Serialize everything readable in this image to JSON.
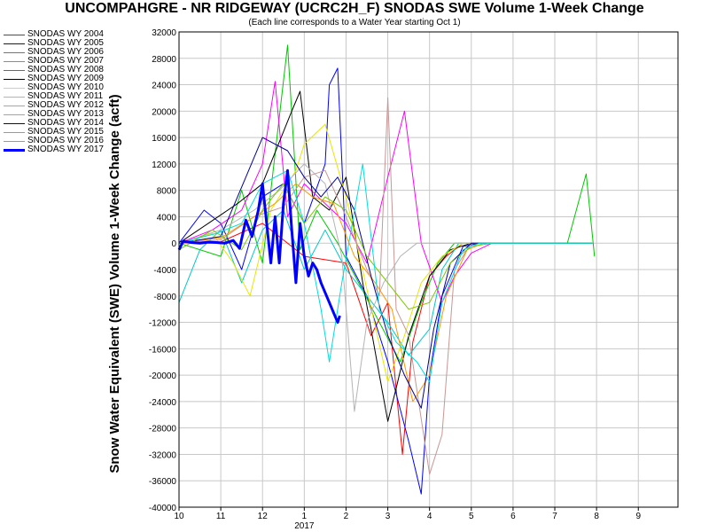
{
  "chart_data": {
    "type": "line",
    "title": "UNCOMPAHGRE - NR RIDGEWAY (UCRC2H_F) SNODAS SWE Volume 1-Week Change",
    "subtitle": "(Each line corresponds to a Water Year starting Oct 1)",
    "ylabel": "Snow Water Equivalent (SWE) Volume 1-Week Change (acft)",
    "xlabel": "",
    "ylim": [
      -40000,
      32000
    ],
    "yticks": [
      "32000",
      "28000",
      "24000",
      "20000",
      "16000",
      "12000",
      "8000",
      "4000",
      "0",
      "-4000",
      "-8000",
      "-12000",
      "-16000",
      "-20000",
      "-24000",
      "-28000",
      "-32000",
      "-36000",
      "-40000"
    ],
    "xticks": [
      "10",
      "11",
      "12",
      "1",
      "2",
      "3",
      "4",
      "5",
      "6",
      "7",
      "8",
      "9"
    ],
    "x_year_label": "2017",
    "grid": true,
    "legend_position": "left",
    "note": "x values are months since Oct 1 of the water year (0 = Oct 1)",
    "series": [
      {
        "name": "SNODAS WY 2004",
        "color": "#ff0000",
        "width": 1,
        "points": [
          [
            0,
            0
          ],
          [
            1,
            200
          ],
          [
            2,
            3000
          ],
          [
            3,
            -2000
          ],
          [
            4,
            -3000
          ],
          [
            4.6,
            -14000
          ],
          [
            5,
            -9000
          ],
          [
            5.35,
            -32000
          ],
          [
            5.6,
            -15000
          ],
          [
            6,
            -5000
          ],
          [
            6.4,
            -2000
          ],
          [
            6.8,
            0
          ],
          [
            9.9,
            0
          ]
        ]
      },
      {
        "name": "SNODAS WY 2005",
        "color": "#0000ff",
        "width": 1,
        "points": [
          [
            0,
            0
          ],
          [
            0.6,
            5000
          ],
          [
            1,
            3000
          ],
          [
            1.5,
            -4000
          ],
          [
            2,
            7000
          ],
          [
            2.5,
            9000
          ],
          [
            3,
            3000
          ],
          [
            3.5,
            12000
          ],
          [
            3.6,
            24000
          ],
          [
            3.8,
            26500
          ],
          [
            4,
            -2000
          ],
          [
            4.5,
            -8000
          ],
          [
            5,
            -18000
          ],
          [
            5.5,
            -30000
          ],
          [
            5.8,
            -38000
          ],
          [
            6,
            -20000
          ],
          [
            6.3,
            -8000
          ],
          [
            6.8,
            -500
          ],
          [
            7.2,
            0
          ],
          [
            9.9,
            0
          ]
        ]
      },
      {
        "name": "SNODAS WY 2006",
        "color": "#00c800",
        "width": 1,
        "points": [
          [
            0,
            0
          ],
          [
            1,
            -2000
          ],
          [
            1.5,
            8000
          ],
          [
            2,
            -3000
          ],
          [
            2.6,
            30000
          ],
          [
            2.9,
            -1000
          ],
          [
            3.3,
            5000
          ],
          [
            3.8,
            0
          ],
          [
            4.3,
            -6000
          ],
          [
            4.8,
            -12000
          ],
          [
            5.3,
            -18000
          ],
          [
            5.8,
            -9000
          ],
          [
            6.2,
            -3000
          ],
          [
            6.6,
            0
          ],
          [
            9.3,
            0
          ],
          [
            9.75,
            10500
          ],
          [
            9.95,
            -2000
          ]
        ]
      },
      {
        "name": "SNODAS WY 2007",
        "color": "#00c8c8",
        "width": 1,
        "points": [
          [
            0,
            -9000
          ],
          [
            0.5,
            -1000
          ],
          [
            1,
            2000
          ],
          [
            1.5,
            -6000
          ],
          [
            2,
            2000
          ],
          [
            2.5,
            5000
          ],
          [
            3,
            -4000
          ],
          [
            3.5,
            2000
          ],
          [
            4,
            -4000
          ],
          [
            4.5,
            -8000
          ],
          [
            5,
            -12000
          ],
          [
            5.5,
            -17000
          ],
          [
            6,
            -13000
          ],
          [
            6.3,
            -4000
          ],
          [
            6.7,
            0
          ],
          [
            9.9,
            0
          ]
        ]
      },
      {
        "name": "SNODAS WY 2008",
        "color": "#ff00ff",
        "width": 1,
        "points": [
          [
            0,
            0
          ],
          [
            0.8,
            2000
          ],
          [
            1.5,
            5000
          ],
          [
            2,
            12000
          ],
          [
            2.3,
            24500
          ],
          [
            2.6,
            4000
          ],
          [
            3,
            9000
          ],
          [
            3.5,
            6000
          ],
          [
            4,
            3000
          ],
          [
            4.5,
            -3000
          ],
          [
            5,
            10000
          ],
          [
            5.4,
            20000
          ],
          [
            5.8,
            0
          ],
          [
            6.3,
            -9000
          ],
          [
            6.6,
            -5000
          ],
          [
            7,
            -1500
          ],
          [
            7.5,
            0
          ],
          [
            9.9,
            0
          ]
        ]
      },
      {
        "name": "SNODAS WY 2009",
        "color": "#000000",
        "width": 1,
        "points": [
          [
            0,
            0
          ],
          [
            0.7,
            3000
          ],
          [
            1.4,
            6000
          ],
          [
            2,
            9000
          ],
          [
            2.7,
            20000
          ],
          [
            2.9,
            23000
          ],
          [
            3.2,
            7000
          ],
          [
            3.6,
            5000
          ],
          [
            4,
            10000
          ],
          [
            4.4,
            -6000
          ],
          [
            4.8,
            -20000
          ],
          [
            5,
            -27000
          ],
          [
            5.2,
            -22000
          ],
          [
            5.5,
            -14000
          ],
          [
            6,
            -5000
          ],
          [
            6.5,
            -1000
          ],
          [
            7,
            0
          ],
          [
            9.9,
            0
          ]
        ]
      },
      {
        "name": "SNODAS WY 2010",
        "color": "#e6e600",
        "width": 1,
        "points": [
          [
            0,
            0
          ],
          [
            0.8,
            1500
          ],
          [
            1.3,
            -3000
          ],
          [
            1.7,
            -8000
          ],
          [
            2.2,
            5000
          ],
          [
            2.8,
            11000
          ],
          [
            3,
            15000
          ],
          [
            3.5,
            18000
          ],
          [
            4,
            7000
          ],
          [
            4.5,
            -7000
          ],
          [
            5,
            -21000
          ],
          [
            5.4,
            -14000
          ],
          [
            5.8,
            -6000
          ],
          [
            6.3,
            -2000
          ],
          [
            6.8,
            0
          ],
          [
            9.9,
            0
          ]
        ]
      },
      {
        "name": "SNODAS WY 2011",
        "color": "#b4b4b4",
        "width": 1,
        "points": [
          [
            0,
            0
          ],
          [
            1,
            2000
          ],
          [
            1.8,
            5000
          ],
          [
            2.4,
            8000
          ],
          [
            3,
            12000
          ],
          [
            3.5,
            9000
          ],
          [
            3.9,
            -2000
          ],
          [
            4.2,
            -25500
          ],
          [
            4.5,
            -12000
          ],
          [
            4.9,
            -6000
          ],
          [
            5.3,
            -2000
          ],
          [
            5.7,
            0
          ],
          [
            9.9,
            0
          ]
        ]
      },
      {
        "name": "SNODAS WY 2012",
        "color": "#c89696",
        "width": 1,
        "points": [
          [
            0,
            0
          ],
          [
            1,
            500
          ],
          [
            1.8,
            4000
          ],
          [
            2.5,
            5500
          ],
          [
            3,
            10000
          ],
          [
            3.5,
            11000
          ],
          [
            4,
            4000
          ],
          [
            4.5,
            -4000
          ],
          [
            4.8,
            -8000
          ],
          [
            5,
            22000
          ],
          [
            5.2,
            -10000
          ],
          [
            5.5,
            -14000
          ],
          [
            6,
            -35000
          ],
          [
            6.3,
            -29000
          ],
          [
            6.6,
            -4000
          ],
          [
            7,
            0
          ],
          [
            9.9,
            0
          ]
        ]
      },
      {
        "name": "SNODAS WY 2013",
        "color": "#ff9600",
        "width": 1,
        "points": [
          [
            0,
            0
          ],
          [
            1,
            800
          ],
          [
            1.8,
            4000
          ],
          [
            2.3,
            6000
          ],
          [
            2.8,
            9000
          ],
          [
            3.2,
            7000
          ],
          [
            3.7,
            6000
          ],
          [
            4.2,
            -2000
          ],
          [
            4.7,
            -6000
          ],
          [
            5.1,
            -10000
          ],
          [
            5.6,
            -24000
          ],
          [
            6,
            -20000
          ],
          [
            6.4,
            -8000
          ],
          [
            6.9,
            -1000
          ],
          [
            7.3,
            0
          ],
          [
            9.9,
            0
          ]
        ]
      },
      {
        "name": "SNODAS WY 2014",
        "color": "#000096",
        "width": 1,
        "points": [
          [
            0,
            0
          ],
          [
            1,
            1000
          ],
          [
            1.6,
            10000
          ],
          [
            2,
            16000
          ],
          [
            2.6,
            14000
          ],
          [
            3,
            10000
          ],
          [
            3.4,
            7000
          ],
          [
            3.8,
            10000
          ],
          [
            4.2,
            5000
          ],
          [
            4.6,
            -5000
          ],
          [
            5,
            -14000
          ],
          [
            5.4,
            -20000
          ],
          [
            5.8,
            -25000
          ],
          [
            6.1,
            -13000
          ],
          [
            6.5,
            -3000
          ],
          [
            7,
            0
          ],
          [
            9.9,
            0
          ]
        ]
      },
      {
        "name": "SNODAS WY 2015",
        "color": "#78c800",
        "width": 1,
        "points": [
          [
            0,
            -1000
          ],
          [
            0.8,
            2000
          ],
          [
            1.5,
            -1000
          ],
          [
            2,
            5000
          ],
          [
            2.5,
            9000
          ],
          [
            3,
            3000
          ],
          [
            3.5,
            7000
          ],
          [
            4,
            5000
          ],
          [
            4.5,
            -2000
          ],
          [
            5,
            -6000
          ],
          [
            5.5,
            -10000
          ],
          [
            6,
            -9000
          ],
          [
            6.5,
            -3000
          ],
          [
            7,
            -500
          ],
          [
            7.5,
            0
          ],
          [
            9.9,
            0
          ]
        ]
      },
      {
        "name": "SNODAS WY 2016",
        "color": "#00dcdc",
        "width": 1,
        "points": [
          [
            0,
            0
          ],
          [
            0.9,
            1500
          ],
          [
            1.5,
            3000
          ],
          [
            2,
            9000
          ],
          [
            2.6,
            11000
          ],
          [
            3,
            3000
          ],
          [
            3.4,
            -10000
          ],
          [
            3.6,
            -18000
          ],
          [
            3.9,
            -6000
          ],
          [
            4.4,
            12000
          ],
          [
            4.8,
            -10000
          ],
          [
            5.2,
            -15000
          ],
          [
            5.7,
            -18000
          ],
          [
            6,
            -21000
          ],
          [
            6.3,
            -9000
          ],
          [
            6.8,
            -1000
          ],
          [
            7.2,
            0
          ],
          [
            9.9,
            0
          ]
        ]
      },
      {
        "name": "SNODAS WY 2017",
        "color": "#0000ff",
        "width": 3,
        "points": [
          [
            0,
            -1000
          ],
          [
            0.1,
            300
          ],
          [
            0.3,
            100
          ],
          [
            0.5,
            0
          ],
          [
            0.7,
            150
          ],
          [
            0.9,
            100
          ],
          [
            1.1,
            0
          ],
          [
            1.3,
            400
          ],
          [
            1.45,
            -800
          ],
          [
            1.6,
            3500
          ],
          [
            1.75,
            1000
          ],
          [
            1.9,
            5000
          ],
          [
            2,
            9000
          ],
          [
            2.1,
            3000
          ],
          [
            2.2,
            -3000
          ],
          [
            2.3,
            4000
          ],
          [
            2.4,
            -3000
          ],
          [
            2.5,
            6000
          ],
          [
            2.6,
            11000
          ],
          [
            2.7,
            2000
          ],
          [
            2.8,
            -6000
          ],
          [
            2.9,
            3000
          ],
          [
            3,
            -2000
          ],
          [
            3.1,
            -5000
          ],
          [
            3.2,
            -3000
          ],
          [
            3.3,
            -4000
          ],
          [
            3.4,
            -6000
          ],
          [
            3.5,
            -7500
          ],
          [
            3.6,
            -9000
          ],
          [
            3.7,
            -10500
          ],
          [
            3.8,
            -12000
          ],
          [
            3.85,
            -11000
          ]
        ]
      }
    ]
  }
}
